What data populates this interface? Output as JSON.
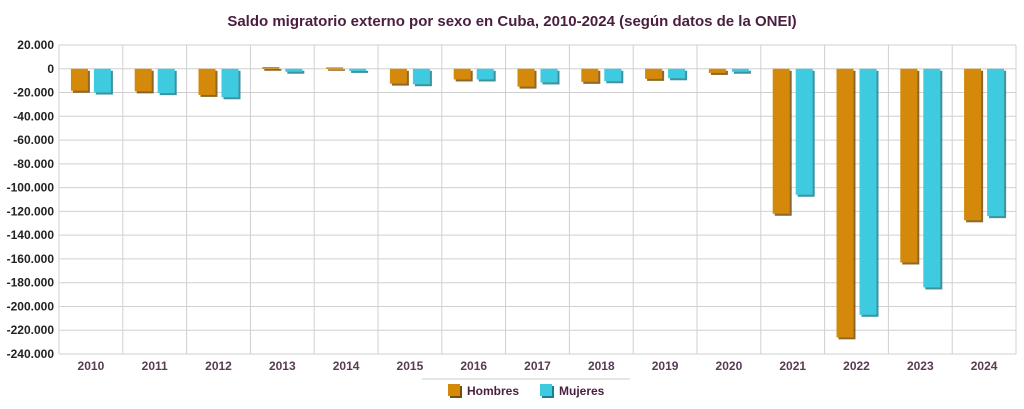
{
  "chart_data": {
    "type": "bar",
    "title": "Saldo migratorio externo por sexo en Cuba, 2010-2024 (según datos de la ONEI)",
    "xlabel": "",
    "ylabel": "",
    "categories": [
      "2010",
      "2011",
      "2012",
      "2013",
      "2014",
      "2015",
      "2016",
      "2017",
      "2018",
      "2019",
      "2020",
      "2021",
      "2022",
      "2023",
      "2024"
    ],
    "series": [
      {
        "name": "Hombres",
        "color": "#d4890a",
        "values": [
          -18500,
          -19000,
          -22000,
          1500,
          1200,
          -12500,
          -9000,
          -15000,
          -11000,
          -8500,
          -3500,
          -122000,
          -226000,
          -163000,
          -127500
        ]
      },
      {
        "name": "Mujeres",
        "color": "#3ecbe0",
        "values": [
          -20000,
          -20500,
          -24000,
          -2500,
          -1800,
          -13000,
          -9000,
          -11500,
          -10500,
          -8000,
          -2500,
          -106000,
          -207000,
          -184000,
          -124000
        ]
      }
    ],
    "ylim": [
      -240000,
      20000
    ],
    "yticks": [
      20000,
      0,
      -20000,
      -40000,
      -60000,
      -80000,
      -100000,
      -120000,
      -140000,
      -160000,
      -180000,
      -200000,
      -220000,
      -240000
    ],
    "ytick_labels": [
      "20.000",
      "0",
      "-20.000",
      "-40.000",
      "-60.000",
      "-80.000",
      "-100.000",
      "-120.000",
      "-140.000",
      "-160.000",
      "-180.000",
      "-200.000",
      "-220.000",
      "-240.000"
    ],
    "grid": true,
    "legend": "bottom-center"
  }
}
